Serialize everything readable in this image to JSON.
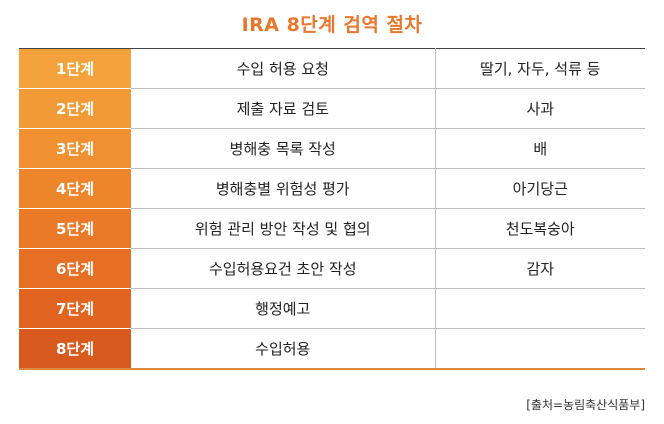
{
  "title": "IRA 8단계 검역 절차",
  "rows": [
    {
      "step": "1단계",
      "process": "수입 허용 요청",
      "fruit": "딸기, 자두, 석류 등",
      "color": "#f4a33c"
    },
    {
      "step": "2단계",
      "process": "제출 자료 검토",
      "fruit": "사과",
      "color": "#f29a36"
    },
    {
      "step": "3단계",
      "process": "병해충 목록 작성",
      "fruit": "배",
      "color": "#f09030"
    },
    {
      "step": "4단계",
      "process": "병해충별 위험성 평가",
      "fruit": "아기당근",
      "color": "#ed852b"
    },
    {
      "step": "5단계",
      "process": "위험 관리 방안 작성 및 협의",
      "fruit": "천도복숭아",
      "color": "#ea7a27"
    },
    {
      "step": "6단계",
      "process": "수입허용요건 초안 작성",
      "fruit": "감자",
      "color": "#e66f24"
    },
    {
      "step": "7단계",
      "process": "행정예고",
      "fruit": "",
      "color": "#e16521"
    },
    {
      "step": "8단계",
      "process": "수입허용",
      "fruit": "",
      "color": "#d95a1e"
    }
  ],
  "source": "[출처=농림축산식품부]"
}
